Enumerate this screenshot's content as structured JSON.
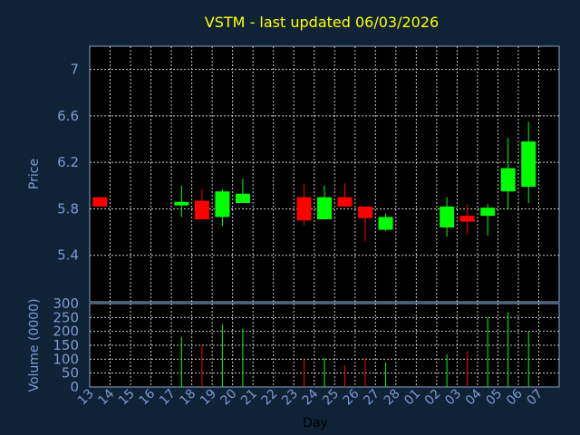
{
  "title": "VSTM - last updated 06/03/2026",
  "chart_data": [
    {
      "type": "candlestick",
      "ylabel": "Price",
      "ylim": [
        5.0,
        7.2
      ],
      "yticks": [
        "5.4",
        "5.8",
        "6.2",
        "6.6",
        "7"
      ],
      "grid": true,
      "up_color": "#00ff00",
      "down_color": "#ff0000",
      "candles": [
        {
          "day": "13",
          "open": 5.9,
          "high": 5.9,
          "low": 5.82,
          "close": 5.82
        },
        {
          "day": "17",
          "open": 5.83,
          "high": 6.0,
          "low": 5.73,
          "close": 5.86
        },
        {
          "day": "18",
          "open": 5.87,
          "high": 5.97,
          "low": 5.71,
          "close": 5.71
        },
        {
          "day": "19",
          "open": 5.73,
          "high": 5.97,
          "low": 5.65,
          "close": 5.95
        },
        {
          "day": "20",
          "open": 5.85,
          "high": 6.06,
          "low": 5.85,
          "close": 5.93
        },
        {
          "day": "23",
          "open": 5.9,
          "high": 6.01,
          "low": 5.66,
          "close": 5.7
        },
        {
          "day": "24",
          "open": 5.71,
          "high": 6.0,
          "low": 5.71,
          "close": 5.9
        },
        {
          "day": "25",
          "open": 5.9,
          "high": 6.02,
          "low": 5.82,
          "close": 5.82
        },
        {
          "day": "26",
          "open": 5.82,
          "high": 5.82,
          "low": 5.52,
          "close": 5.72
        },
        {
          "day": "27",
          "open": 5.62,
          "high": 5.76,
          "low": 5.61,
          "close": 5.73
        },
        {
          "day": "02",
          "open": 5.64,
          "high": 5.9,
          "low": 5.56,
          "close": 5.82
        },
        {
          "day": "03",
          "open": 5.74,
          "high": 5.84,
          "low": 5.58,
          "close": 5.69
        },
        {
          "day": "04",
          "open": 5.74,
          "high": 5.84,
          "low": 5.57,
          "close": 5.81
        },
        {
          "day": "05",
          "open": 5.95,
          "high": 6.41,
          "low": 5.79,
          "close": 6.15
        },
        {
          "day": "06",
          "open": 5.99,
          "high": 6.55,
          "low": 5.85,
          "close": 6.38
        }
      ]
    },
    {
      "type": "bar",
      "ylabel": "Volume (0000)",
      "xlabel": "Day",
      "ylim": [
        0,
        300
      ],
      "yticks": [
        "0",
        "50",
        "100",
        "150",
        "200",
        "250",
        "300"
      ],
      "grid": true,
      "days": [
        "13",
        "14",
        "15",
        "16",
        "17",
        "18",
        "19",
        "20",
        "21",
        "22",
        "23",
        "24",
        "25",
        "26",
        "27",
        "28",
        "01",
        "02",
        "03",
        "04",
        "05",
        "06",
        "07"
      ],
      "bars": [
        {
          "day": "17",
          "value": 180,
          "color": "#00ff00"
        },
        {
          "day": "18",
          "value": 150,
          "color": "#ff0000"
        },
        {
          "day": "19",
          "value": 225,
          "color": "#00ff00"
        },
        {
          "day": "20",
          "value": 210,
          "color": "#00ff00"
        },
        {
          "day": "23",
          "value": 100,
          "color": "#ff0000"
        },
        {
          "day": "24",
          "value": 105,
          "color": "#00ff00"
        },
        {
          "day": "25",
          "value": 78,
          "color": "#ff0000"
        },
        {
          "day": "26",
          "value": 105,
          "color": "#ff0000"
        },
        {
          "day": "27",
          "value": 88,
          "color": "#00ff00"
        },
        {
          "day": "02",
          "value": 118,
          "color": "#00ff00"
        },
        {
          "day": "03",
          "value": 128,
          "color": "#ff0000"
        },
        {
          "day": "04",
          "value": 250,
          "color": "#00ff00"
        },
        {
          "day": "05",
          "value": 270,
          "color": "#00ff00"
        },
        {
          "day": "06",
          "value": 200,
          "color": "#00ff00"
        }
      ]
    }
  ]
}
